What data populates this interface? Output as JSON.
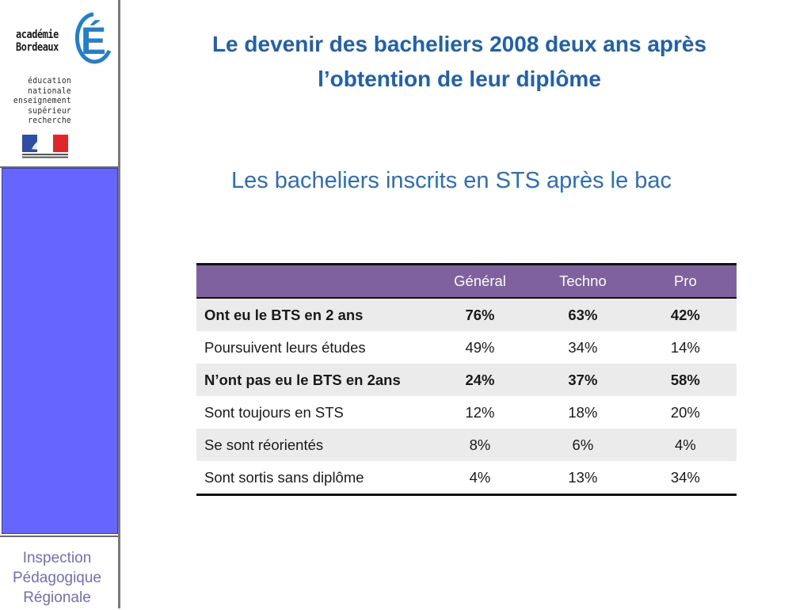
{
  "logo": {
    "academie_line1": "académie",
    "academie_line2": "Bordeaux",
    "letter": "É",
    "sub_lines": [
      "éducation",
      "nationale",
      "enseignement",
      "supérieur",
      "recherche"
    ]
  },
  "sidebar": {
    "inspection_lines": [
      "Inspection",
      "Pédagogique",
      "Régionale"
    ],
    "panel_color": "#6666ff"
  },
  "title": {
    "line1": "Le devenir des bacheliers 2008 deux ans après",
    "line2": "l’obtention de leur diplôme"
  },
  "subtitle": "Les bacheliers inscrits en STS après le bac",
  "table": {
    "headers": [
      "",
      "Général",
      "Techno",
      "Pro"
    ],
    "rows": [
      {
        "label": "Ont eu le BTS en 2 ans",
        "values": [
          "76%",
          "63%",
          "42%"
        ]
      },
      {
        "label": "Poursuivent leurs études",
        "values": [
          "49%",
          "34%",
          "14%"
        ]
      },
      {
        "label": "N’ont pas eu le BTS en 2ans",
        "values": [
          "24%",
          "37%",
          "58%"
        ]
      },
      {
        "label": "Sont toujours en STS",
        "values": [
          "12%",
          "18%",
          "20%"
        ]
      },
      {
        "label": "Se sont réorientés",
        "values": [
          "8%",
          "6%",
          "4%"
        ]
      },
      {
        "label": "Sont sortis sans diplôme",
        "values": [
          "4%",
          "13%",
          "34%"
        ]
      }
    ]
  },
  "colors": {
    "title": "#2060b0",
    "header_bg": "#8061a0",
    "row_shade": "#ebebeb"
  }
}
